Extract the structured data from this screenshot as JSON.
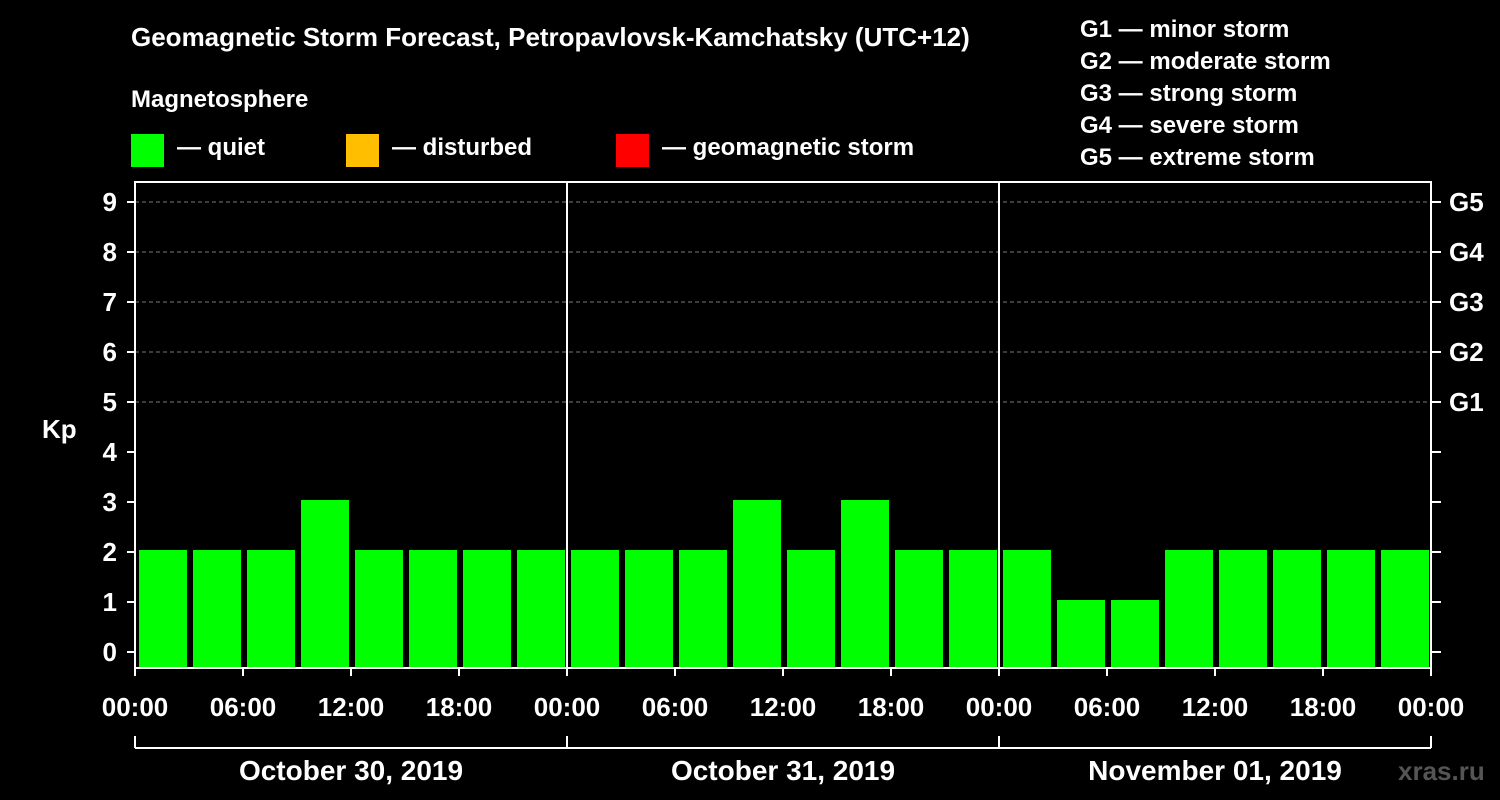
{
  "chart_data": {
    "type": "bar",
    "title": "Geomagnetic Storm Forecast, Petropavlovsk-Kamchatsky (UTC+12)",
    "ylabel": "Kp",
    "ylim": [
      0,
      9
    ],
    "y_ticks": [
      "0",
      "1",
      "2",
      "3",
      "4",
      "5",
      "6",
      "7",
      "8",
      "9"
    ],
    "right_ticks": [
      {
        "label": "G1",
        "kp": 5
      },
      {
        "label": "G2",
        "kp": 6
      },
      {
        "label": "G3",
        "kp": 7
      },
      {
        "label": "G4",
        "kp": 8
      },
      {
        "label": "G5",
        "kp": 9
      }
    ],
    "x_ticks": [
      "00:00",
      "06:00",
      "12:00",
      "18:00",
      "00:00",
      "06:00",
      "12:00",
      "18:00",
      "00:00",
      "06:00",
      "12:00",
      "18:00",
      "00:00"
    ],
    "days": [
      "October 30, 2019",
      "October 31, 2019",
      "November 01, 2019"
    ],
    "values": [
      2,
      2,
      2,
      3,
      2,
      2,
      2,
      2,
      2,
      2,
      2,
      3,
      2,
      3,
      2,
      2,
      2,
      1,
      1,
      2,
      2,
      2,
      2,
      2
    ],
    "grid": "dashed at Kp 5-9",
    "bar_color": "#00ff00"
  },
  "legend": {
    "heading": "Magnetosphere",
    "items": [
      {
        "label": "— quiet",
        "color": "#00ff00"
      },
      {
        "label": "— disturbed",
        "color": "#ffbf00"
      },
      {
        "label": "— geomagnetic storm",
        "color": "#ff0000"
      }
    ]
  },
  "storm_levels": [
    "G1 — minor storm",
    "G2 — moderate storm",
    "G3 — strong storm",
    "G4 — severe storm",
    "G5 — extreme storm"
  ],
  "watermark": "xras.ru"
}
